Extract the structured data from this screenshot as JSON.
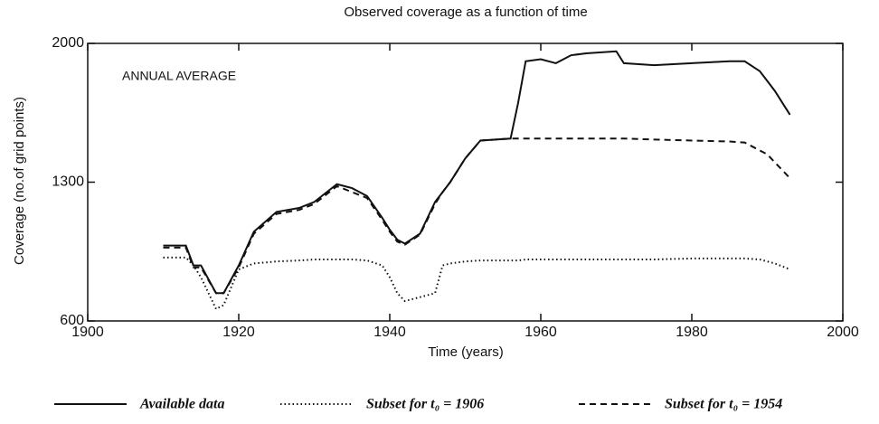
{
  "chart_data": {
    "type": "line",
    "title": "Observed coverage as a function of time",
    "x_label": "Time (years)",
    "y_label": "Coverage (no.of grid points)",
    "annotation": "ANNUAL AVERAGE",
    "x": [
      1910,
      1913,
      1914,
      1915,
      1917,
      1918,
      1920,
      1922,
      1925,
      1928,
      1930,
      1932,
      1933,
      1935,
      1937,
      1939,
      1940,
      1941,
      1942,
      1944,
      1946,
      1947,
      1948,
      1950,
      1952,
      1956,
      1957,
      1958,
      1960,
      1962,
      1964,
      1966,
      1970,
      1971,
      1975,
      1980,
      1985,
      1987,
      1989,
      1990,
      1991,
      1993
    ],
    "series": [
      {
        "name": "Available data",
        "color": "#111111",
        "dash": "solid",
        "values": [
          980,
          980,
          880,
          880,
          740,
          740,
          880,
          1050,
          1150,
          1170,
          1200,
          1260,
          1290,
          1270,
          1230,
          1120,
          1060,
          1010,
          990,
          1040,
          1200,
          1250,
          1300,
          1420,
          1510,
          1520,
          1700,
          1910,
          1920,
          1900,
          1940,
          1950,
          1960,
          1900,
          1890,
          1900,
          1910,
          1910,
          1860,
          1810,
          1760,
          1640
        ]
      },
      {
        "name": "Subset for t₀ = 1906",
        "color": "#111111",
        "dash": "dotted",
        "values": [
          920,
          920,
          880,
          820,
          660,
          680,
          860,
          890,
          900,
          905,
          910,
          910,
          910,
          910,
          905,
          880,
          820,
          740,
          700,
          720,
          740,
          880,
          890,
          900,
          905,
          905,
          905,
          910,
          910,
          910,
          910,
          910,
          910,
          910,
          910,
          915,
          915,
          915,
          910,
          900,
          890,
          860
        ]
      },
      {
        "name": "Subset for t₀ = 1954",
        "color": "#111111",
        "dash": "dashed",
        "values": [
          970,
          970,
          870,
          870,
          740,
          740,
          870,
          1040,
          1140,
          1160,
          1190,
          1250,
          1280,
          1250,
          1220,
          1110,
          1050,
          1000,
          985,
          1035,
          1190,
          1250,
          1300,
          1420,
          1510,
          1520,
          1520,
          1520,
          1520,
          1520,
          1520,
          1520,
          1520,
          1520,
          1515,
          1510,
          1505,
          1500,
          1460,
          1440,
          1400,
          1320
        ]
      }
    ],
    "xlim": [
      1900,
      2000
    ],
    "xticks": [
      1900,
      1920,
      1940,
      1960,
      1980,
      2000
    ],
    "ylim": [
      600,
      2000
    ],
    "yticks": [
      600,
      1300,
      2000
    ],
    "grid": false
  }
}
